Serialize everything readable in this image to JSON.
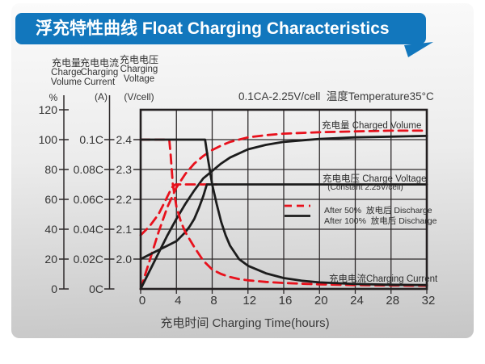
{
  "title": {
    "full": "浮充特性曲线 Float Charging Characteristics"
  },
  "condition_note": "0.1CA-2.25V/cell  温度Temperature35°C",
  "axes": {
    "volume": {
      "zh": "充电量",
      "en1": "Charge",
      "en2": "Volume",
      "unit": "%",
      "ticks": [
        "120",
        "100",
        "80",
        "60",
        "40",
        "20",
        "0"
      ]
    },
    "current": {
      "zh": "充电电流",
      "en1": "Charging",
      "en2": "Current",
      "unit": "(A)",
      "ticks": [
        "0.1C",
        "0.08C",
        "0.06C",
        "0.04C",
        "0.02C",
        "0C"
      ]
    },
    "voltage": {
      "zh": "充电电压",
      "en1": "Charging",
      "en2": "Voltage",
      "unit": "(V/cell)",
      "ticks": [
        "2.4",
        "2.3",
        "2.2",
        "2.1",
        "2.0"
      ]
    },
    "x": {
      "label": "充电时间 Charging Time(hours)",
      "ticks": [
        "0",
        "4",
        "8",
        "12",
        "16",
        "20",
        "24",
        "28",
        "32"
      ]
    }
  },
  "annotations": {
    "charged_volume": "充电量 Charged Volume",
    "charge_voltage": "充电电压 Charge Voltage",
    "charge_voltage_sub": "(Constant 2.25V/cell)",
    "charging_current": "充电电流Charging Current"
  },
  "legend": [
    {
      "label": "After 50%  放电后 Discharge",
      "color": "#e8111c",
      "style": "dashed"
    },
    {
      "label": "After 100%  放电后 Discharge",
      "color": "#1c1c1c",
      "style": "solid"
    }
  ],
  "colors": {
    "banner_blue": "#1277bd",
    "curve_red": "#e8111c",
    "curve_black": "#1c1c1c",
    "grid": "#2e2a2b",
    "border": "#231f20",
    "tick_text": "#333333"
  },
  "chart_data": {
    "type": "line",
    "title": "浮充特性曲线 Float Charging Characteristics",
    "condition": "0.1CA-2.25V/cell 温度Temperature35°C",
    "x": {
      "label": "充电时间 Charging Time(hours)",
      "min": 0,
      "max": 32,
      "ticks": [
        0,
        4,
        8,
        12,
        16,
        20,
        24,
        28,
        32
      ]
    },
    "y_axes": [
      {
        "id": "volume",
        "label": "充电量 Charge Volume",
        "unit": "%",
        "min": 0,
        "max": 120,
        "ticks": [
          0,
          20,
          40,
          60,
          80,
          100,
          120
        ]
      },
      {
        "id": "current",
        "label": "充电电流 Charging Current",
        "unit": "CA",
        "min": 0,
        "max": 0.12,
        "ticks": [
          0,
          0.02,
          0.04,
          0.06,
          0.08,
          0.1
        ]
      },
      {
        "id": "voltage",
        "label": "充电电压 Charging Voltage",
        "unit": "V/cell",
        "min": 1.9,
        "max": 2.5,
        "ticks": [
          2.0,
          2.1,
          2.2,
          2.3,
          2.4
        ]
      }
    ],
    "grid_levels_pct": [
      0,
      20,
      40,
      60,
      80,
      100,
      120
    ],
    "legend_position": "inside-right",
    "grid": true,
    "series": [
      {
        "name": "充电量 Charged Volume — After 50% 放电后 Discharge",
        "group": "after-50",
        "unit": "%",
        "color": "#e8111c",
        "style": "dashed",
        "points": [
          [
            0,
            0
          ],
          [
            1,
            19
          ],
          [
            2,
            38
          ],
          [
            3,
            55
          ],
          [
            4,
            68
          ],
          [
            5,
            77
          ],
          [
            6,
            84
          ],
          [
            7,
            89
          ],
          [
            8,
            93
          ],
          [
            9,
            96
          ],
          [
            10,
            98.5
          ],
          [
            12,
            101.5
          ],
          [
            14,
            103
          ],
          [
            16,
            104
          ],
          [
            20,
            105
          ],
          [
            24,
            105.5
          ],
          [
            28,
            106
          ],
          [
            32,
            106
          ]
        ]
      },
      {
        "name": "充电量 Charged Volume — After 100% 放电后 Discharge",
        "group": "after-100",
        "unit": "%",
        "color": "#1c1c1c",
        "style": "solid",
        "points": [
          [
            0,
            0
          ],
          [
            1,
            12
          ],
          [
            2,
            24
          ],
          [
            3,
            36
          ],
          [
            4,
            47
          ],
          [
            5,
            57
          ],
          [
            6,
            66
          ],
          [
            7,
            74
          ],
          [
            8,
            79
          ],
          [
            9,
            84
          ],
          [
            10,
            88
          ],
          [
            12,
            93.5
          ],
          [
            14,
            96.5
          ],
          [
            16,
            98.5
          ],
          [
            20,
            100.5
          ],
          [
            24,
            101.5
          ],
          [
            28,
            102
          ],
          [
            32,
            102.5
          ]
        ]
      },
      {
        "name": "充电电压 Charge Voltage (Constant 2.25V/cell) — After 50% 放电后 Discharge",
        "group": "after-50",
        "unit": "V",
        "color": "#e8111c",
        "style": "dashed",
        "points": [
          [
            0,
            2.08
          ],
          [
            1,
            2.11
          ],
          [
            2,
            2.15
          ],
          [
            2.5,
            2.18
          ],
          [
            3,
            2.21
          ],
          [
            3.5,
            2.24
          ],
          [
            3.9,
            2.25
          ],
          [
            8.5,
            2.25
          ]
        ]
      },
      {
        "name": "充电电压 Charge Voltage (Constant 2.25V/cell) — After 100% 放电后 Discharge",
        "group": "after-100",
        "unit": "V",
        "color": "#1c1c1c",
        "style": "solid",
        "points": [
          [
            0,
            2.0
          ],
          [
            1,
            2.015
          ],
          [
            2,
            2.03
          ],
          [
            3,
            2.045
          ],
          [
            4,
            2.06
          ],
          [
            5,
            2.09
          ],
          [
            5.5,
            2.11
          ],
          [
            6,
            2.135
          ],
          [
            6.5,
            2.17
          ],
          [
            7,
            2.21
          ],
          [
            7.4,
            2.25
          ],
          [
            32,
            2.25
          ]
        ]
      },
      {
        "name": "充电电流 Charging Current — After 50% 放电后 Discharge",
        "group": "after-50",
        "unit": "C",
        "color": "#e8111c",
        "style": "dashed",
        "points": [
          [
            0,
            0.1
          ],
          [
            3.2,
            0.1
          ],
          [
            3.35,
            0.09
          ],
          [
            3.6,
            0.07
          ],
          [
            4,
            0.055
          ],
          [
            4.5,
            0.045
          ],
          [
            5,
            0.038
          ],
          [
            6,
            0.028
          ],
          [
            7,
            0.019
          ],
          [
            8,
            0.013
          ],
          [
            9,
            0.01
          ],
          [
            10,
            0.008
          ],
          [
            11,
            0.0066
          ],
          [
            12,
            0.0058
          ],
          [
            14,
            0.0047
          ],
          [
            16,
            0.004
          ],
          [
            18,
            0.0035
          ],
          [
            20,
            0.0031
          ],
          [
            24,
            0.0026
          ],
          [
            28,
            0.0023
          ],
          [
            32,
            0.0021
          ]
        ]
      },
      {
        "name": "充电电流 Charging Current — After 100% 放电后 Discharge",
        "group": "after-100",
        "unit": "C",
        "color": "#1c1c1c",
        "style": "solid",
        "points": [
          [
            0,
            0.1
          ],
          [
            7.2,
            0.1
          ],
          [
            7.5,
            0.088
          ],
          [
            8,
            0.07
          ],
          [
            8.5,
            0.057
          ],
          [
            9,
            0.045
          ],
          [
            9.5,
            0.036
          ],
          [
            10,
            0.029
          ],
          [
            11,
            0.02
          ],
          [
            12,
            0.0155
          ],
          [
            14,
            0.0105
          ],
          [
            16,
            0.0073
          ],
          [
            18,
            0.0055
          ],
          [
            20,
            0.0044
          ],
          [
            24,
            0.0033
          ],
          [
            28,
            0.0028
          ],
          [
            32,
            0.0026
          ]
        ]
      }
    ]
  }
}
